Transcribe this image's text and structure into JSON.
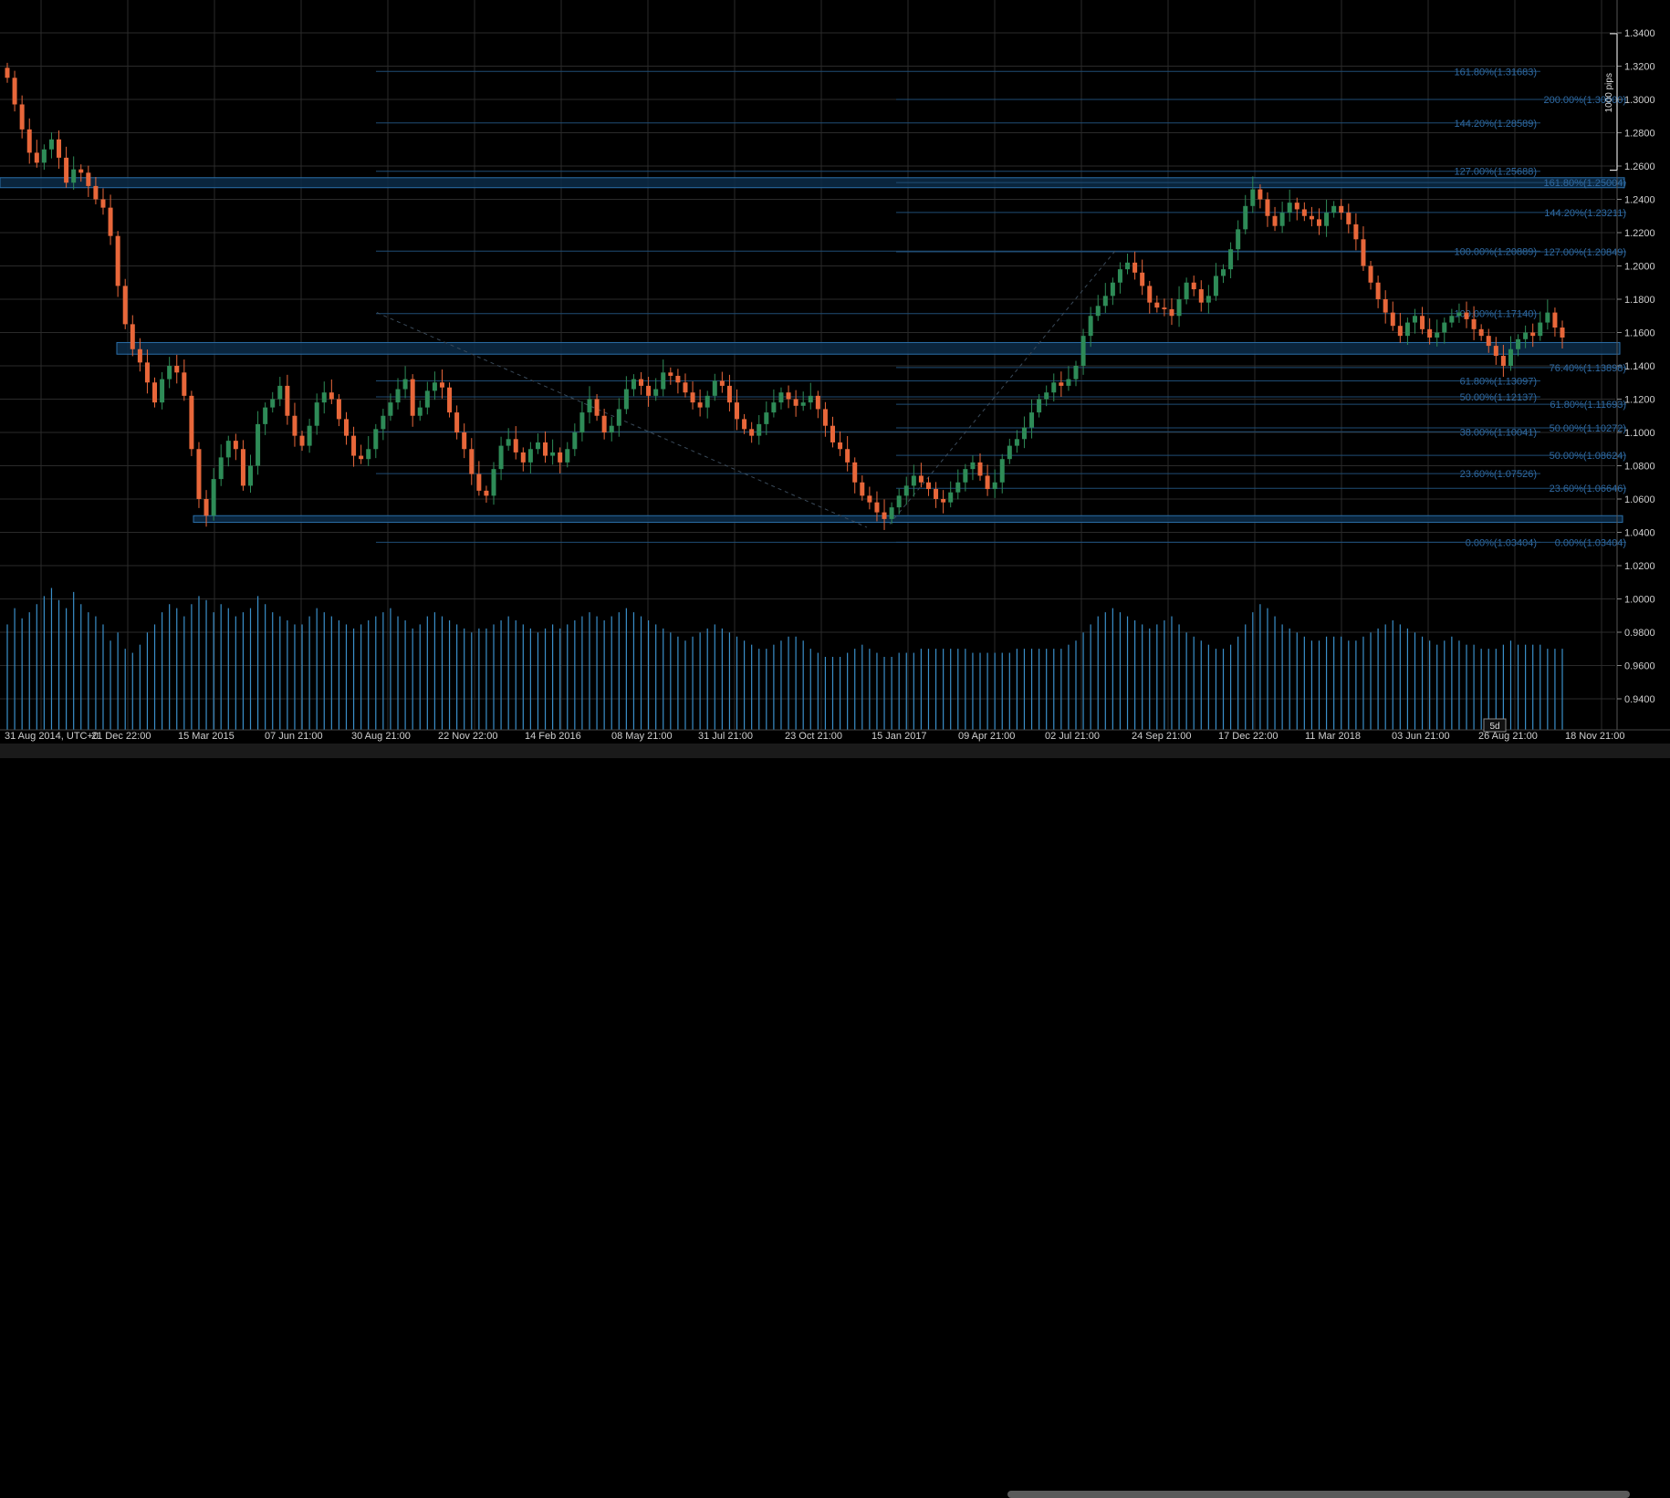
{
  "colors": {
    "background": "#000000",
    "grid": "#2a2a2a",
    "bull": "#2e8b57",
    "bear": "#e8673a",
    "volume": "#3a8fc9",
    "fib_line": "#1f4d75",
    "fib_text": "#2f6aa3",
    "zone_fill": "#0c2b48",
    "zone_stroke": "#2b6ea8",
    "axis_text": "#cfcfcf"
  },
  "chart_data": {
    "type": "candlestick",
    "grid": true,
    "ylim": [
      0.92,
      1.35
    ],
    "y_ticks": [
      "0.9400",
      "0.9600",
      "0.9800",
      "1.0000",
      "1.0200",
      "1.0400",
      "1.0600",
      "1.0800",
      "1.1000",
      "1.1200",
      "1.1400",
      "1.1600",
      "1.1800",
      "1.2000",
      "1.2200",
      "1.2400",
      "1.2600",
      "1.2800",
      "1.3000",
      "1.3200",
      "1.3400"
    ],
    "x_labels": [
      "31 Aug 2014, UTC+0",
      "21 Dec 22:00",
      "15 Mar 2015",
      "07 Jun 21:00",
      "30 Aug 21:00",
      "22 Nov 22:00",
      "14 Feb 2016",
      "08 May 21:00",
      "31 Jul 21:00",
      "23 Oct 21:00",
      "15 Jan 2017",
      "09 Apr 21:00",
      "02 Jul 21:00",
      "24 Sep 21:00",
      "17 Dec 22:00",
      "11 Mar 2018",
      "03 Jun 21:00",
      "26 Aug 21:00",
      "18 Nov 21:00"
    ],
    "closes": [
      1.313,
      1.297,
      1.282,
      1.268,
      1.262,
      1.27,
      1.276,
      1.265,
      1.25,
      1.258,
      1.256,
      1.248,
      1.24,
      1.235,
      1.218,
      1.188,
      1.165,
      1.15,
      1.142,
      1.13,
      1.118,
      1.132,
      1.14,
      1.136,
      1.122,
      1.09,
      1.06,
      1.05,
      1.072,
      1.085,
      1.095,
      1.09,
      1.068,
      1.08,
      1.105,
      1.115,
      1.12,
      1.128,
      1.11,
      1.098,
      1.092,
      1.104,
      1.118,
      1.124,
      1.12,
      1.108,
      1.098,
      1.086,
      1.084,
      1.09,
      1.102,
      1.11,
      1.118,
      1.126,
      1.132,
      1.11,
      1.115,
      1.125,
      1.13,
      1.127,
      1.112,
      1.1,
      1.09,
      1.075,
      1.065,
      1.062,
      1.078,
      1.092,
      1.096,
      1.088,
      1.082,
      1.09,
      1.094,
      1.086,
      1.088,
      1.082,
      1.09,
      1.1,
      1.112,
      1.12,
      1.11,
      1.1,
      1.104,
      1.114,
      1.126,
      1.132,
      1.128,
      1.122,
      1.126,
      1.136,
      1.134,
      1.13,
      1.124,
      1.118,
      1.115,
      1.122,
      1.131,
      1.128,
      1.118,
      1.108,
      1.102,
      1.098,
      1.105,
      1.112,
      1.118,
      1.124,
      1.12,
      1.116,
      1.118,
      1.122,
      1.114,
      1.104,
      1.094,
      1.09,
      1.082,
      1.07,
      1.062,
      1.058,
      1.052,
      1.048,
      1.055,
      1.062,
      1.068,
      1.074,
      1.07,
      1.066,
      1.06,
      1.058,
      1.064,
      1.07,
      1.078,
      1.082,
      1.074,
      1.066,
      1.07,
      1.084,
      1.092,
      1.096,
      1.103,
      1.112,
      1.12,
      1.124,
      1.13,
      1.128,
      1.132,
      1.14,
      1.158,
      1.17,
      1.176,
      1.182,
      1.19,
      1.198,
      1.202,
      1.196,
      1.188,
      1.178,
      1.175,
      1.174,
      1.17,
      1.18,
      1.19,
      1.186,
      1.178,
      1.182,
      1.194,
      1.198,
      1.21,
      1.222,
      1.236,
      1.246,
      1.24,
      1.23,
      1.224,
      1.232,
      1.238,
      1.234,
      1.23,
      1.228,
      1.224,
      1.232,
      1.236,
      1.232,
      1.225,
      1.216,
      1.2,
      1.19,
      1.18,
      1.172,
      1.164,
      1.158,
      1.166,
      1.17,
      1.162,
      1.157,
      1.16,
      1.166,
      1.17,
      1.172,
      1.168,
      1.162,
      1.158,
      1.152,
      1.146,
      1.14,
      1.15,
      1.156,
      1.16,
      1.158,
      1.166,
      1.172,
      1.163,
      1.157
    ],
    "volumes": [
      52,
      60,
      55,
      58,
      62,
      66,
      70,
      64,
      60,
      68,
      62,
      58,
      56,
      52,
      44,
      48,
      40,
      38,
      42,
      48,
      52,
      58,
      62,
      60,
      56,
      62,
      66,
      64,
      58,
      62,
      60,
      56,
      58,
      60,
      66,
      62,
      58,
      56,
      54,
      52,
      52,
      56,
      60,
      58,
      56,
      54,
      52,
      50,
      52,
      54,
      56,
      58,
      60,
      56,
      54,
      50,
      52,
      56,
      58,
      56,
      54,
      52,
      50,
      48,
      50,
      50,
      52,
      54,
      56,
      54,
      52,
      50,
      48,
      50,
      52,
      50,
      52,
      54,
      56,
      58,
      56,
      54,
      56,
      58,
      60,
      58,
      56,
      54,
      52,
      50,
      48,
      46,
      44,
      46,
      48,
      50,
      52,
      50,
      48,
      46,
      44,
      42,
      40,
      40,
      42,
      44,
      46,
      46,
      44,
      40,
      38,
      36,
      36,
      36,
      38,
      40,
      42,
      40,
      38,
      36,
      36,
      38,
      38,
      38,
      40,
      40,
      40,
      40,
      40,
      40,
      40,
      38,
      38,
      38,
      38,
      38,
      38,
      40,
      40,
      40,
      40,
      40,
      40,
      40,
      42,
      44,
      48,
      52,
      56,
      58,
      60,
      58,
      56,
      54,
      52,
      50,
      52,
      54,
      56,
      52,
      48,
      46,
      44,
      42,
      40,
      40,
      42,
      46,
      52,
      58,
      62,
      60,
      56,
      52,
      50,
      48,
      46,
      44,
      44,
      46,
      46,
      46,
      44,
      44,
      46,
      48,
      50,
      52,
      54,
      52,
      50,
      48,
      46,
      44,
      42,
      44,
      46,
      44,
      42,
      42,
      40,
      40,
      40,
      42,
      44,
      42,
      42,
      42,
      42,
      40
    ],
    "fibonacci": [
      {
        "label": "161.80%(1.31683)",
        "value": 1.31683
      },
      {
        "label": "200.00%(1.30000)",
        "value": 1.3
      },
      {
        "label": "144.20%(1.28589)",
        "value": 1.28589
      },
      {
        "label": "127.00%(1.25688)",
        "value": 1.25688
      },
      {
        "label": "161.80%(1.25004)",
        "value": 1.25004
      },
      {
        "label": "144.20%(1.23211)",
        "value": 1.23211
      },
      {
        "label": "100.00%(1.20889)",
        "value": 1.20889
      },
      {
        "label": "127.00%(1.20849)",
        "value": 1.20849
      },
      {
        "label": "100.00%(1.17140)",
        "value": 1.1714
      },
      {
        "label": "61.80%(1.13097)",
        "value": 1.13097
      },
      {
        "label": "76.40%(1.13898)",
        "value": 1.13898
      },
      {
        "label": "50.00%(1.12137)",
        "value": 1.12137
      },
      {
        "label": "61.80%(1.11693)",
        "value": 1.11693
      },
      {
        "label": "38.00%(1.10041)",
        "value": 1.10041
      },
      {
        "label": "50.00%(1.10272)",
        "value": 1.10272
      },
      {
        "label": "50.00%(1.08624)",
        "value": 1.08624
      },
      {
        "label": "23.60%(1.07526)",
        "value": 1.07526
      },
      {
        "label": "23.60%(1.06646)",
        "value": 1.06646
      },
      {
        "label": "0.00%(1.03404)",
        "value": 1.03404
      },
      {
        "label": "0.00%(1.03404)",
        "value": 1.03404
      }
    ],
    "ruler_label": "1000 pips",
    "badge_label": "5d"
  }
}
